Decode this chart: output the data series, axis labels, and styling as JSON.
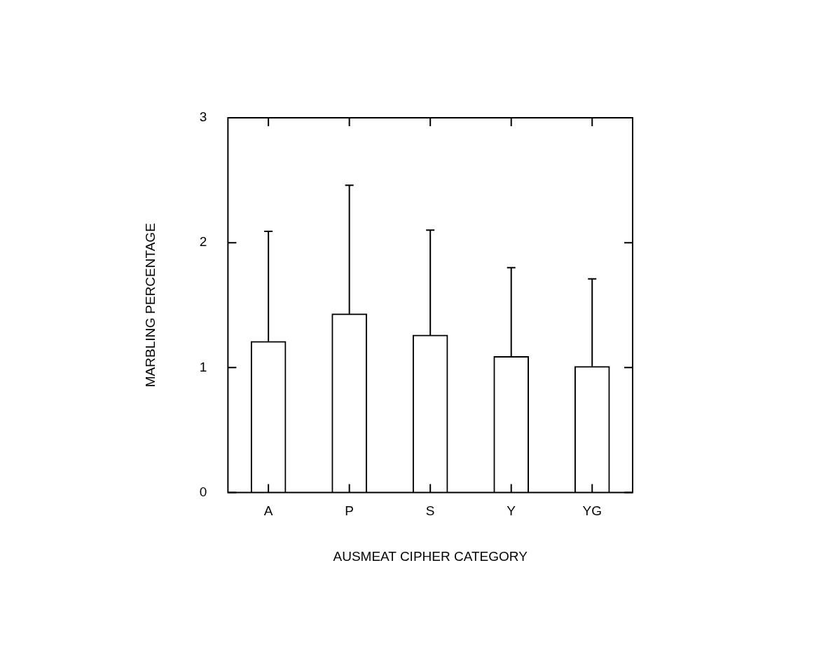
{
  "chart_data": {
    "type": "bar",
    "xlabel": "AUSMEAT CIPHER CATEGORY",
    "ylabel": "MARBLING PERCENTAGE",
    "categories": [
      "A",
      "P",
      "S",
      "Y",
      "YG"
    ],
    "values": [
      1.21,
      1.43,
      1.26,
      1.09,
      1.01
    ],
    "errors": [
      [
        1.21,
        2.09
      ],
      [
        1.43,
        2.46
      ],
      [
        1.26,
        2.1
      ],
      [
        1.09,
        1.8
      ],
      [
        1.01,
        1.71
      ]
    ],
    "color": "#ffffff",
    "ylim": [
      0,
      3
    ],
    "yticks": [
      0,
      1,
      2,
      3
    ],
    "grid": false,
    "legend": false
  }
}
